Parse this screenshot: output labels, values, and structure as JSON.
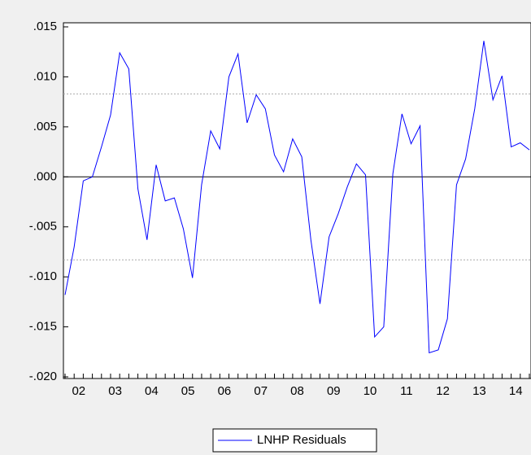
{
  "chart_data": {
    "type": "line",
    "categories": [
      null,
      "02",
      null,
      null,
      null,
      "03",
      null,
      null,
      null,
      "04",
      null,
      null,
      null,
      "05",
      null,
      null,
      null,
      "06",
      null,
      null,
      null,
      "07",
      null,
      null,
      null,
      "08",
      null,
      null,
      null,
      "09",
      null,
      null,
      null,
      "10",
      null,
      null,
      null,
      "11",
      null,
      null,
      null,
      "12",
      null,
      null,
      null,
      "13",
      null,
      null,
      null,
      "14",
      null,
      null
    ],
    "series": [
      {
        "name": "LNHP Residuals",
        "color": "#0000ff",
        "values": [
          -0.0118,
          -0.007,
          -0.0004,
          0.0,
          0.003,
          0.0062,
          0.0124,
          0.0108,
          -0.0012,
          -0.0063,
          0.0012,
          -0.0024,
          -0.0021,
          -0.0052,
          -0.0101,
          -0.0008,
          0.0046,
          0.0028,
          0.01,
          0.0123,
          0.0054,
          0.0082,
          0.0068,
          0.0022,
          0.0005,
          0.0038,
          0.002,
          -0.0063,
          -0.0127,
          -0.006,
          -0.0037,
          -0.001,
          0.0013,
          0.0002,
          -0.016,
          -0.015,
          0.0003,
          0.0063,
          0.0033,
          0.0051,
          -0.0176,
          -0.0173,
          -0.0142,
          -0.0008,
          0.0018,
          0.0068,
          0.0136,
          0.0077,
          0.0101,
          0.003,
          0.0034,
          0.0027
        ]
      }
    ],
    "ylim": [
      -0.02,
      0.015
    ],
    "yticks": [
      {
        "value": -0.02,
        "label": "-.020"
      },
      {
        "value": -0.015,
        "label": "-.015"
      },
      {
        "value": -0.01,
        "label": "-.010"
      },
      {
        "value": -0.005,
        "label": "-.005"
      },
      {
        "value": 0,
        "label": ".000"
      },
      {
        "value": 0.005,
        "label": ".005"
      },
      {
        "value": 0.01,
        "label": ".010"
      },
      {
        "value": 0.015,
        "label": ".015"
      }
    ],
    "zero_line": 0,
    "band_lines": [
      -0.0083,
      0.0083
    ],
    "legend": "bottom"
  }
}
